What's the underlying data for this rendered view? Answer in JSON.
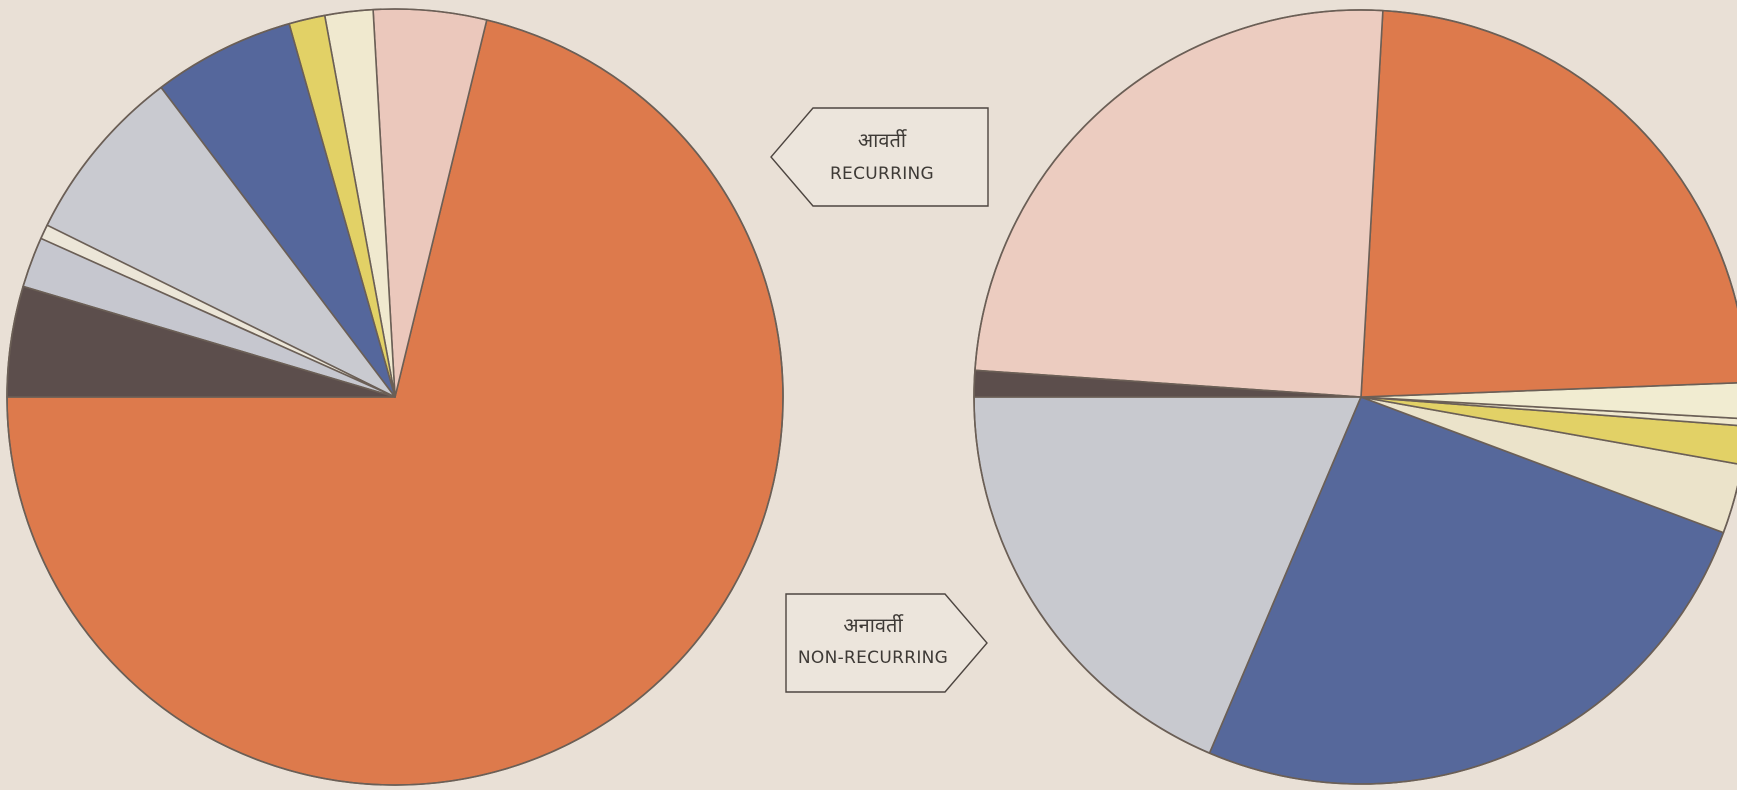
{
  "chart_data": [
    {
      "type": "pie",
      "title": "",
      "start_angle_deg": 180,
      "values": [
        71.2,
        4.7,
        2.0,
        1.5,
        5.9,
        7.4,
        0.6,
        2.1,
        4.6
      ],
      "colors": [
        "#dd7a4c",
        "#ebc8bc",
        "#f0e9cf",
        "#e2d166",
        "#55679c",
        "#c9cad0",
        "#ece6d8",
        "#c6c7cf",
        "#5c4e4c"
      ]
    },
    {
      "type": "pie",
      "title": "",
      "start_angle_deg": 180,
      "values": [
        18.6,
        25.7,
        2.9,
        1.6,
        0.3,
        1.5,
        23.5,
        24.8,
        1.1
      ],
      "colors": [
        "#c8c9cf",
        "#56689b",
        "#ebe3ca",
        "#e2d166",
        "#f0e9cf",
        "#f1ecd1",
        "#dd7a4c",
        "#ecccc0",
        "#5c4e4c"
      ]
    }
  ],
  "labels": {
    "recurring_hi": "आवर्ती",
    "recurring_en": "RECURRING",
    "nonrecurring_hi": "अनावर्ती",
    "nonrecurring_en": "NON-RECURRING"
  },
  "colors": {
    "background": "#e9e0d6",
    "outline": "#6b5f56"
  }
}
